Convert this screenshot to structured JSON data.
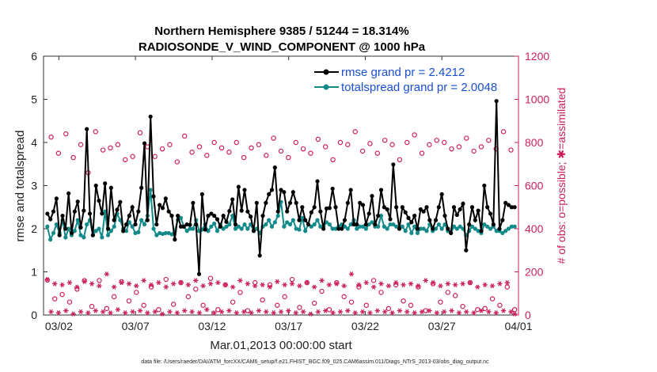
{
  "chart_data": {
    "type": "line",
    "title": "Northern Hemisphere 9385 / 51244 = 18.314%",
    "subtitle": "RADIOSONDE_V_WIND_COMPONENT @ 1000 hPa",
    "xlabel": "Mar.01,2013 00:00:00 start",
    "ylabel": "rmse and totalspread",
    "ylabel_right": "# of obs: o=possible; ✱=assimilated",
    "footer": "data file: /Users/raeder/DAI/ATM_forcXX/CAM6_setup/f.e21.FHIST_BGC.f09_025.CAM6assim.011/Diags_NTrS_2013-03/obs_diag_output.nc",
    "x_ticks": [
      "03/02",
      "03/07",
      "03/12",
      "03/17",
      "03/22",
      "03/27",
      "04/01"
    ],
    "x_tick_days": [
      1,
      6,
      11,
      16,
      21,
      26,
      31
    ],
    "xlim": [
      0,
      31
    ],
    "ylim": [
      0,
      6
    ],
    "y_ticks": [
      "0",
      "1",
      "2",
      "3",
      "4",
      "5",
      "6"
    ],
    "ylim_right": [
      0,
      1200
    ],
    "y_ticks_right": [
      "0",
      "200",
      "400",
      "600",
      "800",
      "1000",
      "1200"
    ],
    "colors": {
      "rmse": "#000000",
      "spread": "#138a8a",
      "obs": "#cc1f5a",
      "legend_text": "#1a4fd0"
    },
    "series": [
      {
        "name": "rmse grand pr = 2.4212",
        "values": [
          2.35,
          2.22,
          2.4,
          2.7,
          1.85,
          2.3,
          2.0,
          2.82,
          1.9,
          2.4,
          2.63,
          2.03,
          2.42,
          4.31,
          2.35,
          1.85,
          3.0,
          2.65,
          2.35,
          3.05,
          2.0,
          2.95,
          2.2,
          2.44,
          2.62,
          1.95,
          2.1,
          2.3,
          2.5,
          2.1,
          2.4,
          2.95,
          3.98,
          2.2,
          4.6,
          2.75,
          2.1,
          2.55,
          2.48,
          2.7,
          2.4,
          2.3,
          1.75,
          2.3,
          2.05,
          2.05,
          2.1,
          2.09,
          2.6,
          2.1,
          0.95,
          2.8,
          1.98,
          2.3,
          2.35,
          2.3,
          2.22,
          2.05,
          2.3,
          2.16,
          2.41,
          2.68,
          2.1,
          2.97,
          2.42,
          2.9,
          2.4,
          2.28,
          1.95,
          2.6,
          1.38,
          2.3,
          2.6,
          2.8,
          2.9,
          3.42,
          2.4,
          2.9,
          2.85,
          2.4,
          2.6,
          2.85,
          2.6,
          2.2,
          2.5,
          2.2,
          2.1,
          2.38,
          2.5,
          3.1,
          2.4,
          2.0,
          2.47,
          2.48,
          2.93,
          2.5,
          2.0,
          2.0,
          2.2,
          2.6,
          2.9,
          2.1,
          2.1,
          2.6,
          2.55,
          2.1,
          2.35,
          2.76,
          2.1,
          2.3,
          2.9,
          2.5,
          2.45,
          2.22,
          3.49,
          2.5,
          2.0,
          2.5,
          2.38,
          2.25,
          2.15,
          2.3,
          2.0,
          2.45,
          2.4,
          2.5,
          2.2,
          2.0,
          2.2,
          2.5,
          2.8,
          2.3,
          2.0,
          1.9,
          2.5,
          2.32,
          2.45,
          2.58,
          1.5,
          2.1,
          2.5,
          2.2,
          2.42,
          1.95,
          3.0,
          2.5,
          2.35,
          2.1,
          4.96,
          2.0,
          2.2,
          2.6,
          2.55,
          2.5,
          2.5
        ],
        "marker": "dot"
      },
      {
        "name": "totalspread grand pr = 2.0048",
        "values": [
          2.05,
          1.75,
          1.9,
          2.1,
          1.9,
          2.2,
          1.8,
          2.0,
          1.85,
          1.95,
          2.2,
          1.85,
          1.8,
          2.1,
          2.2,
          1.85,
          1.95,
          2.0,
          1.8,
          2.4,
          1.85,
          1.95,
          2.05,
          2.35,
          2.2,
          2.0,
          1.95,
          2.15,
          2.05,
          1.9,
          1.92,
          2.2,
          2.1,
          2.3,
          2.9,
          2.0,
          1.85,
          1.9,
          1.88,
          1.9,
          1.9,
          1.87,
          1.95,
          2.2,
          2.25,
          2.05,
          1.95,
          2.0,
          2.0,
          2.2,
          1.95,
          1.98,
          2.1,
          1.95,
          2.05,
          2.12,
          1.95,
          2.1,
          2.0,
          2.05,
          2.1,
          2.3,
          2.0,
          2.05,
          2.0,
          2.1,
          2.0,
          2.1,
          1.95,
          2.0,
          1.9,
          2.05,
          2.1,
          2.2,
          2.05,
          2.15,
          2.3,
          2.62,
          2.05,
          2.15,
          2.1,
          2.2,
          2.0,
          1.98,
          2.25,
          1.95,
          2.1,
          2.05,
          2.1,
          2.2,
          2.05,
          2.05,
          2.15,
          2.1,
          2.0,
          2.0,
          2.05,
          2.1,
          2.05,
          2.0,
          2.1,
          2.2,
          2.0,
          2.05,
          2.05,
          2.0,
          2.1,
          2.15,
          2.05,
          2.05,
          2.3,
          2.05,
          2.0,
          2.1,
          2.1,
          2.05,
          2.0,
          2.05,
          1.95,
          2.1,
          1.9,
          2.05,
          1.9,
          2.0,
          2.0,
          1.95,
          2.1,
          1.95,
          2.0,
          2.1,
          2.0,
          2.1,
          1.95,
          1.9,
          2.05,
          2.0,
          2.05,
          2.0,
          1.85,
          1.95,
          2.05,
          2.0,
          1.95,
          1.9,
          2.1,
          2.05,
          2.0,
          2.05,
          1.95,
          1.95,
          1.9,
          1.95,
          2.0,
          2.05,
          2.05
        ],
        "marker": "dot"
      },
      {
        "name": "possible",
        "axis": "right",
        "marker": "circle",
        "values": [
          162,
          825,
          75,
          750,
          95,
          840,
          60,
          730,
          120,
          790,
          160,
          660,
          40,
          850,
          160,
          765,
          30,
          775,
          85,
          790,
          155,
          720,
          65,
          735,
          105,
          845,
          45,
          780,
          130,
          735,
          25,
          770,
          165,
          790,
          50,
          710,
          150,
          830,
          85,
          755,
          120,
          780,
          45,
          740,
          170,
          800,
          25,
          775,
          140,
          755,
          60,
          800,
          105,
          730,
          20,
          775,
          150,
          790,
          70,
          740,
          140,
          820,
          45,
          760,
          85,
          730,
          165,
          800,
          35,
          770,
          150,
          750,
          55,
          815,
          110,
          780,
          25,
          720,
          150,
          800,
          85,
          790,
          60,
          850,
          130,
          760,
          45,
          795,
          160,
          750,
          105,
          810,
          30,
          790,
          140,
          720,
          65,
          800,
          45,
          835,
          130,
          750,
          20,
          790,
          145,
          810,
          60,
          800,
          105,
          770,
          90,
          780,
          40,
          820,
          150,
          760,
          25,
          780,
          30,
          810,
          75,
          770,
          45,
          850,
          130,
          765,
          25
        ],
        "axis_note": "# of obs"
      },
      {
        "name": "assimilated",
        "axis": "right",
        "marker": "asterisk",
        "values": [
          165,
          15,
          145,
          10,
          140,
          20,
          150,
          5,
          130,
          15,
          155,
          10,
          145,
          20,
          135,
          15,
          190,
          10,
          130,
          25,
          150,
          10,
          145,
          15,
          135,
          20,
          160,
          10,
          140,
          15,
          150,
          5,
          130,
          15,
          145,
          10,
          150,
          20,
          140,
          15,
          160,
          10,
          135,
          25,
          145,
          10,
          150,
          15,
          140,
          20,
          130,
          10,
          160,
          15,
          145,
          10,
          135,
          20,
          140,
          15,
          130,
          10,
          155,
          15,
          140,
          20,
          145,
          10,
          135,
          15,
          150,
          5,
          130,
          15,
          160,
          20,
          140,
          10,
          145,
          15,
          135,
          20,
          190,
          10,
          140,
          15,
          150,
          10,
          130,
          20,
          145,
          15,
          135,
          10,
          150,
          20,
          140,
          15,
          145,
          10,
          135,
          15,
          160,
          20,
          150,
          10,
          135,
          15,
          145,
          20,
          140,
          10,
          145,
          15,
          150,
          10,
          130,
          20,
          140,
          15,
          135,
          10,
          145,
          20,
          150,
          15,
          5
        ]
      }
    ]
  }
}
